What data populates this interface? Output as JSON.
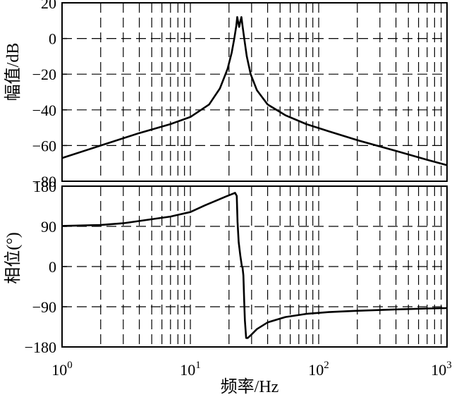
{
  "chart_data": [
    {
      "type": "line",
      "ylabel": "幅值/dB",
      "ylim": [
        -80,
        20
      ],
      "yticks": [
        20,
        0,
        -20,
        -40,
        -60,
        -80
      ],
      "ytick_labels": [
        "20",
        "0",
        "−20",
        "−40",
        "−60",
        "−80"
      ],
      "x_scale": "log",
      "xlim": [
        1,
        1000
      ],
      "grid": "dashed",
      "series": [
        {
          "x": [
            1,
            2,
            4,
            7,
            10,
            14,
            17,
            19.5,
            21,
            22,
            22.8,
            23.2,
            23.6,
            24,
            24.4,
            25,
            25.5,
            26.3,
            27.5,
            29.5,
            33,
            40,
            55,
            80,
            120,
            200,
            400,
            700,
            1000
          ],
          "y": [
            -67,
            -60,
            -53,
            -48,
            -44,
            -37,
            -28,
            -17,
            -8,
            0,
            7,
            12,
            9,
            6.5,
            9,
            12,
            7,
            0,
            -10,
            -20,
            -29,
            -37,
            -43,
            -48,
            -52,
            -57,
            -63,
            -68,
            -71
          ]
        }
      ]
    },
    {
      "type": "line",
      "xlabel": "频率/Hz",
      "ylabel": "相位(°)",
      "ylim": [
        -180,
        180
      ],
      "yticks": [
        180,
        90,
        0,
        -90,
        -180
      ],
      "ytick_labels": [
        "180",
        "90",
        "0",
        "−90",
        "−180"
      ],
      "x_scale": "log",
      "xlim": [
        1,
        1000
      ],
      "xtick_labels": [
        {
          "base": "10",
          "exp": "0"
        },
        {
          "base": "10",
          "exp": "1"
        },
        {
          "base": "10",
          "exp": "2"
        },
        {
          "base": "10",
          "exp": "3"
        }
      ],
      "grid": "dashed",
      "series": [
        {
          "x": [
            1,
            2,
            3,
            5,
            7,
            10,
            13,
            16,
            19,
            21,
            22.3,
            23,
            23.3,
            23.8,
            24.5,
            25.2,
            25.5,
            25.9,
            26.3,
            26.6,
            27.2,
            28,
            30,
            33,
            40,
            55,
            80,
            120,
            200,
            400,
            700,
            1000
          ],
          "y": [
            91,
            93,
            97,
            106,
            112,
            122,
            137,
            148,
            157,
            162,
            165,
            158,
            100,
            55,
            25,
            0,
            -2,
            -20,
            -80,
            -120,
            -160,
            -160,
            -152,
            -140,
            -125,
            -113,
            -106,
            -102,
            -99,
            -96,
            -94,
            -93
          ]
        }
      ]
    }
  ]
}
